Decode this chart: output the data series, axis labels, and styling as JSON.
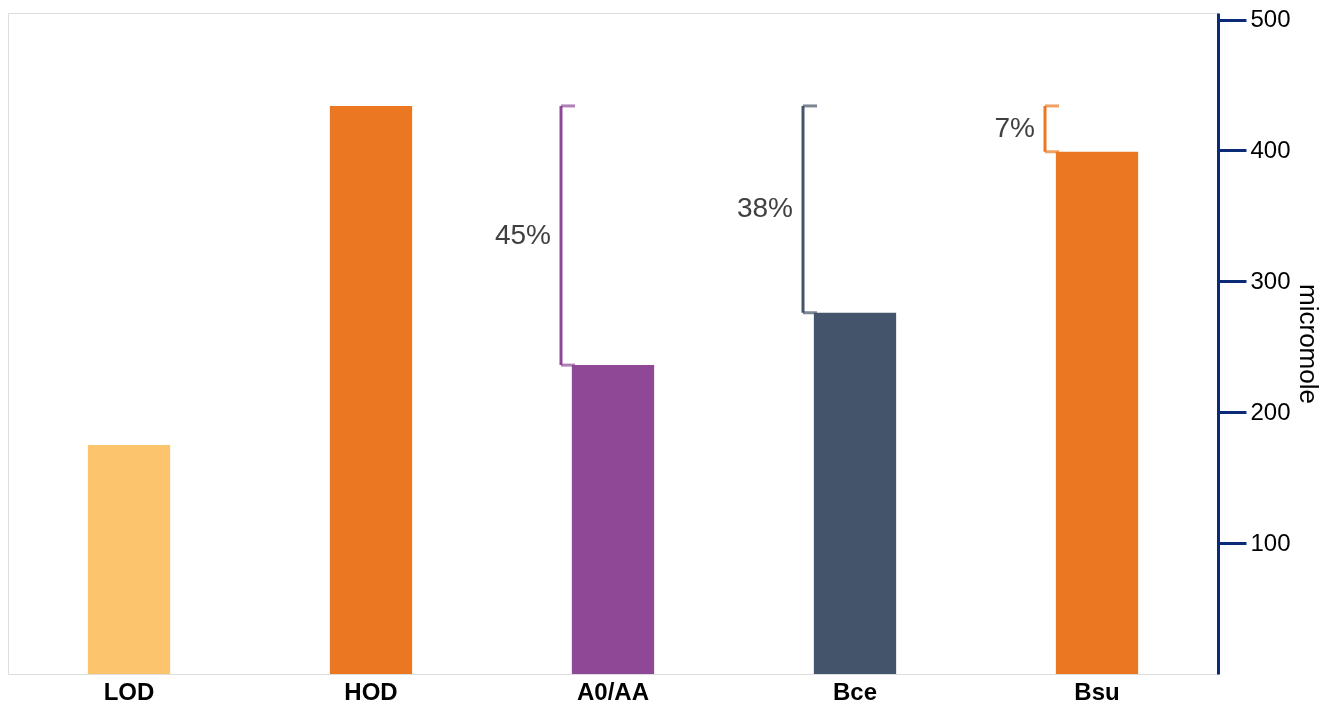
{
  "chart_data": {
    "type": "bar",
    "ylabel": "micromole",
    "categories": [
      "LOD",
      "HOD",
      "A0/AA",
      "Bce",
      "Bsu"
    ],
    "values": [
      175,
      434,
      236,
      276,
      399
    ],
    "colors": [
      "#fdc46e",
      "#ec7722",
      "#8e4895",
      "#44546a",
      "#ec7722"
    ],
    "ylim": [
      0,
      505
    ],
    "yticks": [
      100,
      200,
      300,
      400,
      500
    ],
    "grid": false,
    "annotations": [
      "45%",
      "38%",
      "7%"
    ]
  }
}
